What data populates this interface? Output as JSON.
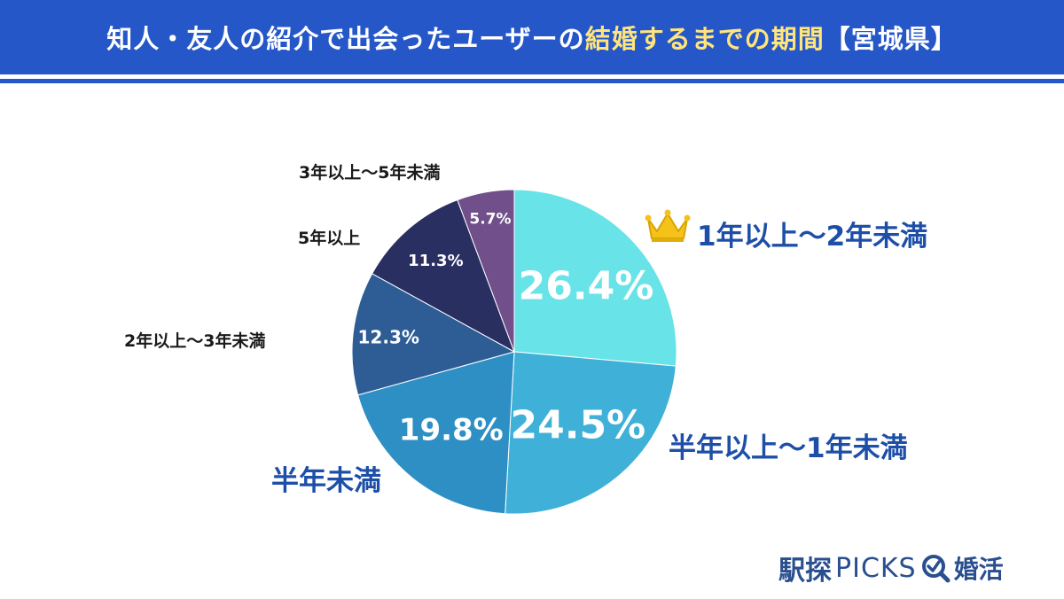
{
  "header": {
    "title_main": "知人・友人の紹介で出会ったユーザーの",
    "title_highlight": "結婚するまでの期間",
    "title_suffix": "【宮城県】",
    "bg_color": "#2557c9",
    "highlight_color": "#ffe57a"
  },
  "chart_data": {
    "type": "pie",
    "title": "知人・友人の紹介で出会ったユーザーの結婚するまでの期間【宮城県】",
    "start": "12 o'clock",
    "direction": "clockwise",
    "slices": [
      {
        "label": "1年以上～2年未満",
        "value": 26.4,
        "value_label": "26.4%",
        "color": "#68e3e8"
      },
      {
        "label": "半年以上～1年未満",
        "value": 24.5,
        "value_label": "24.5%",
        "color": "#3fb0d7"
      },
      {
        "label": "半年未満",
        "value": 19.8,
        "value_label": "19.8%",
        "color": "#2d8fc3"
      },
      {
        "label": "2年以上～3年未満",
        "value": 12.3,
        "value_label": "12.3%",
        "color": "#2e5d96"
      },
      {
        "label": "5年以上",
        "value": 11.3,
        "value_label": "11.3%",
        "color": "#2a2f62"
      },
      {
        "label": "3年以上～5年未満",
        "value": 5.7,
        "value_label": "5.7%",
        "color": "#704f8a"
      }
    ],
    "top_marker_icon": "crown-icon"
  },
  "logo": {
    "part1": "駅探",
    "part2": "PICKS",
    "part3": "婚活",
    "icon": "magnifier-check-icon",
    "color": "#2a4f8f"
  }
}
